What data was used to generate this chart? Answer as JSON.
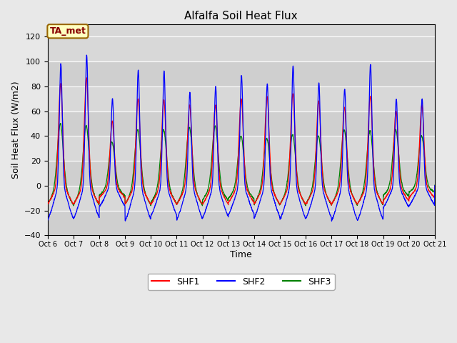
{
  "title": "Alfalfa Soil Heat Flux",
  "ylabel": "Soil Heat Flux (W/m2)",
  "xlabel": "Time",
  "ylim": [
    -40,
    130
  ],
  "yticks": [
    -40,
    -20,
    0,
    20,
    40,
    60,
    80,
    100,
    120
  ],
  "fig_bg_color": "#e8e8e8",
  "plot_bg_color": "#d8d8d8",
  "annotation_text": "TA_met",
  "annotation_bg": "#ffffc0",
  "annotation_border": "#996600",
  "annotation_text_color": "#880000",
  "line_colors": {
    "SHF1": "red",
    "SHF2": "blue",
    "SHF3": "green"
  },
  "xtick_labels": [
    "Oct 6",
    "Oct 7",
    "Oct 8",
    "Oct 9",
    "Oct 10",
    "Oct 11",
    "Oct 12",
    "Oct 13",
    "Oct 14",
    "Oct 15",
    "Oct 16",
    "Oct 17",
    "Oct 18",
    "Oct 19",
    "Oct 20",
    "Oct 21"
  ],
  "n_days": 15,
  "points_per_day": 144
}
